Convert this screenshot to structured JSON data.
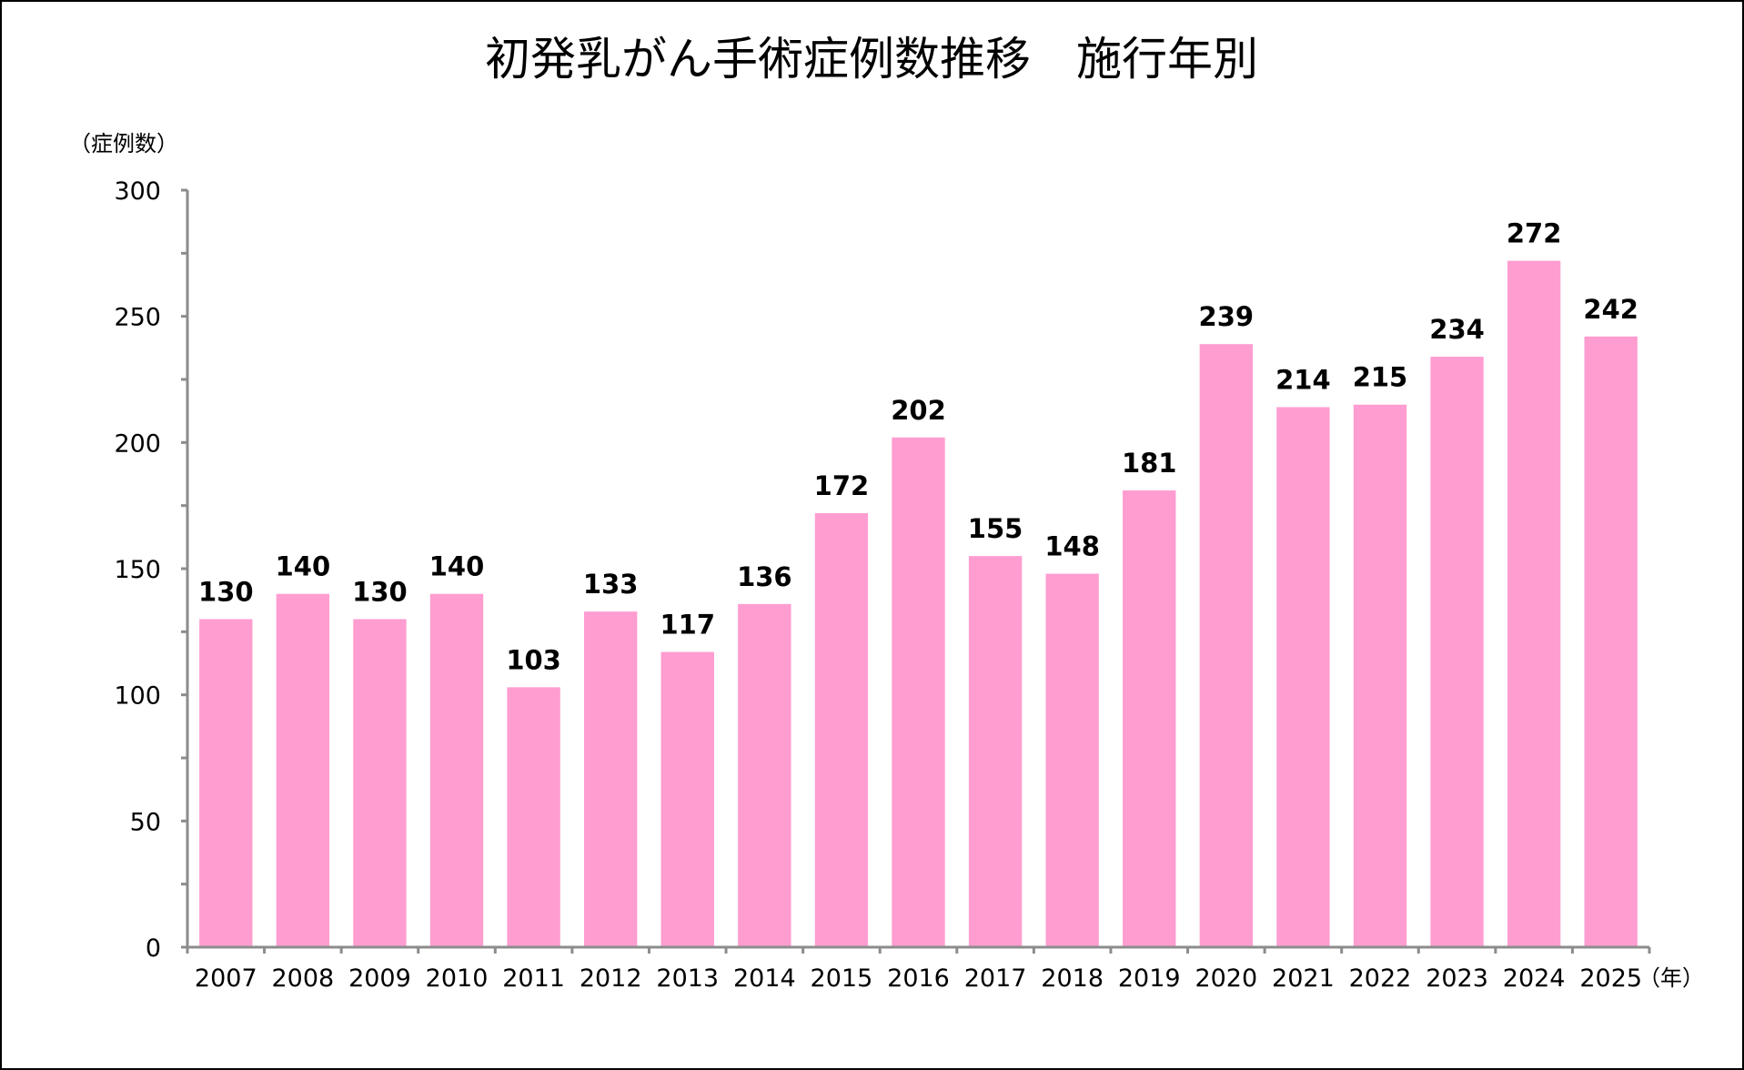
{
  "chart_data": {
    "type": "bar",
    "title": "初発乳がん手術症例数推移　施行年別",
    "ylabel": "（症例数）",
    "xlabel": "（年）",
    "ylim": [
      0,
      300
    ],
    "yticks": [
      0,
      50,
      100,
      150,
      200,
      250,
      300
    ],
    "y_minor_step": 25,
    "grid": false,
    "legend": "none",
    "bar_color": "#ff9dd1",
    "categories": [
      "2007",
      "2008",
      "2009",
      "2010",
      "2011",
      "2012",
      "2013",
      "2014",
      "2015",
      "2016",
      "2017",
      "2018",
      "2019",
      "2020",
      "2021",
      "2022",
      "2023",
      "2024",
      "2025"
    ],
    "values": [
      130,
      140,
      130,
      140,
      103,
      133,
      117,
      136,
      172,
      202,
      155,
      148,
      181,
      239,
      214,
      215,
      234,
      272,
      242
    ],
    "data_labels": true
  }
}
